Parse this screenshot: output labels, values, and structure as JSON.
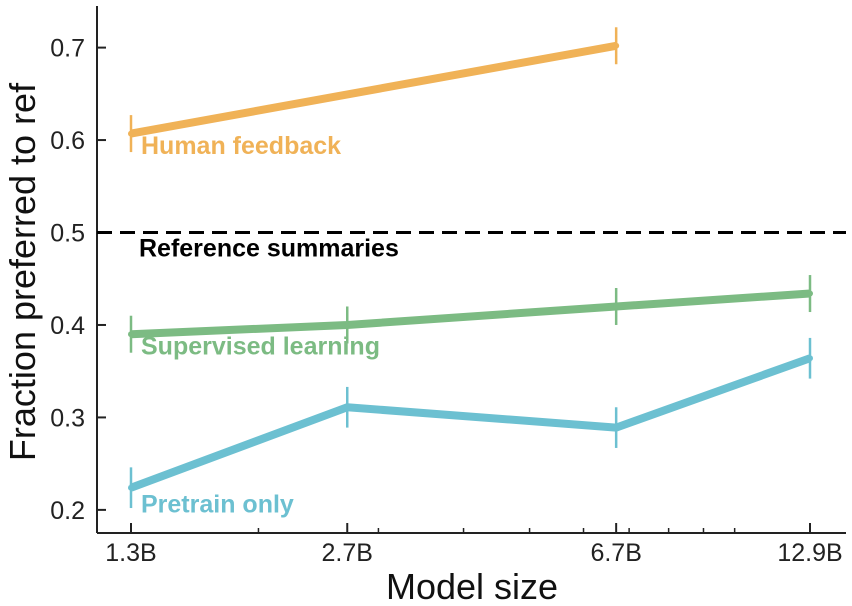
{
  "chart_data": {
    "type": "line",
    "xlabel": "Model size",
    "ylabel": "Fraction preferred to ref",
    "x_scale": "log",
    "x_ticks": [
      {
        "label": "1.3B",
        "value": 1.3
      },
      {
        "label": "2.7B",
        "value": 2.7
      },
      {
        "label": "6.7B",
        "value": 6.7
      },
      {
        "label": "12.9B",
        "value": 12.9
      }
    ],
    "x_minor_ticks": [
      2,
      3,
      4,
      5,
      6,
      7,
      8,
      9,
      10
    ],
    "xlim": [
      1.3,
      13.5
    ],
    "ylim": [
      0.175,
      0.745
    ],
    "y_ticks": [
      {
        "label": "0.2",
        "value": 0.2
      },
      {
        "label": "0.3",
        "value": 0.3
      },
      {
        "label": "0.4",
        "value": 0.4
      },
      {
        "label": "0.5",
        "value": 0.5
      },
      {
        "label": "0.6",
        "value": 0.6
      },
      {
        "label": "0.7",
        "value": 0.7
      }
    ],
    "grid": false,
    "reference_line": {
      "value": 0.5,
      "label": "Reference summaries",
      "color": "#000000",
      "style": "dashed"
    },
    "series": [
      {
        "name": "Human feedback",
        "color": "#F0B257",
        "x": [
          1.3,
          6.7
        ],
        "y": [
          0.607,
          0.702
        ],
        "err": [
          0.02,
          0.02
        ],
        "label_anchor": {
          "x": 1.3,
          "y": 0.585
        }
      },
      {
        "name": "Supervised learning",
        "color": "#7CBB83",
        "x": [
          1.3,
          2.7,
          6.7,
          12.9
        ],
        "y": [
          0.39,
          0.4,
          0.42,
          0.434
        ],
        "err": [
          0.02,
          0.02,
          0.02,
          0.02
        ],
        "label_anchor": {
          "x": 1.3,
          "y": 0.368
        }
      },
      {
        "name": "Pretrain only",
        "color": "#6CC0D1",
        "x": [
          1.3,
          2.7,
          6.7,
          12.9
        ],
        "y": [
          0.224,
          0.311,
          0.289,
          0.364
        ],
        "err": [
          0.022,
          0.022,
          0.022,
          0.022
        ],
        "label_anchor": {
          "x": 1.3,
          "y": 0.197
        }
      }
    ]
  }
}
